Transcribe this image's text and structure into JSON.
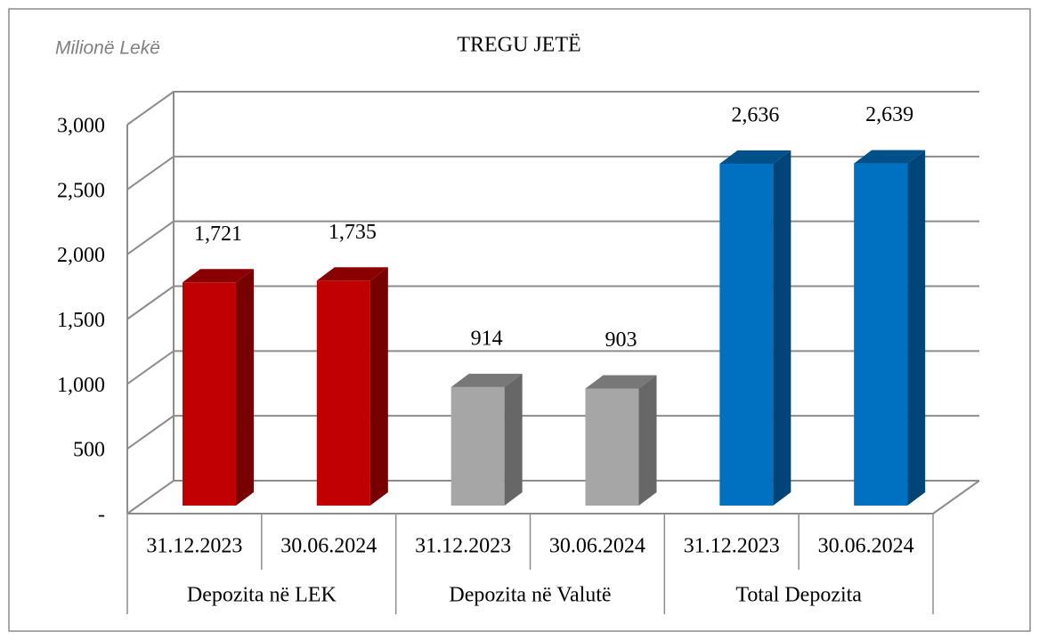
{
  "chart_data": {
    "type": "bar3d",
    "title": "TREGU JETË",
    "unit_label": "Milionë Lekë",
    "categories": [
      "31.12.2023",
      "30.06.2024",
      "31.12.2023",
      "30.06.2024",
      "31.12.2023",
      "30.06.2024"
    ],
    "groups": [
      "Depozita në LEK",
      "Depozita në Valutë",
      "Total Depozita"
    ],
    "values": [
      1721,
      1735,
      914,
      903,
      2636,
      2639
    ],
    "value_labels": [
      "1,721",
      "1,735",
      "914",
      "903",
      "2,636",
      "2,639"
    ],
    "colors": [
      "#c00000",
      "#c00000",
      "#a6a6a6",
      "#a6a6a6",
      "#0070c0",
      "#0070c0"
    ],
    "ylim": [
      0,
      3000
    ],
    "yticks": [
      {
        "value": 0,
        "label": "-"
      },
      500,
      {
        "value": 1000,
        "label": "1,000"
      },
      {
        "value": 1500,
        "label": "1,500"
      },
      {
        "value": 2000,
        "label": "2,000"
      },
      {
        "value": 2500,
        "label": "2,500"
      },
      {
        "value": 3000,
        "label": "3,000"
      }
    ],
    "grid": true
  }
}
